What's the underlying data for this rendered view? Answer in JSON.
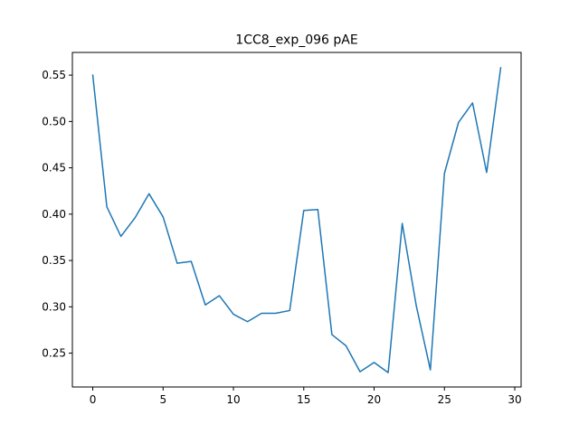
{
  "chart_data": {
    "type": "line",
    "title": "1CC8_exp_096 pAE",
    "xlabel": "",
    "ylabel": "",
    "xlim": [
      -1.45,
      30.45
    ],
    "ylim": [
      0.2135,
      0.5745
    ],
    "x_ticks": [
      0,
      5,
      10,
      15,
      20,
      25,
      30
    ],
    "y_ticks": [
      0.25,
      0.3,
      0.35,
      0.4,
      0.45,
      0.5,
      0.55
    ],
    "grid": false,
    "legend": "none",
    "series": [
      {
        "color": "#1f77b4",
        "x": [
          0,
          1,
          2,
          3,
          4,
          5,
          6,
          7,
          8,
          9,
          10,
          11,
          12,
          13,
          14,
          15,
          16,
          17,
          18,
          19,
          20,
          21,
          22,
          23,
          24,
          25,
          26,
          27,
          28,
          29
        ],
        "values": [
          0.55,
          0.408,
          0.376,
          0.396,
          0.422,
          0.397,
          0.347,
          0.349,
          0.302,
          0.312,
          0.292,
          0.284,
          0.293,
          0.293,
          0.296,
          0.404,
          0.405,
          0.27,
          0.258,
          0.23,
          0.24,
          0.229,
          0.39,
          0.301,
          0.232,
          0.444,
          0.499,
          0.52,
          0.445,
          0.558
        ]
      }
    ]
  }
}
